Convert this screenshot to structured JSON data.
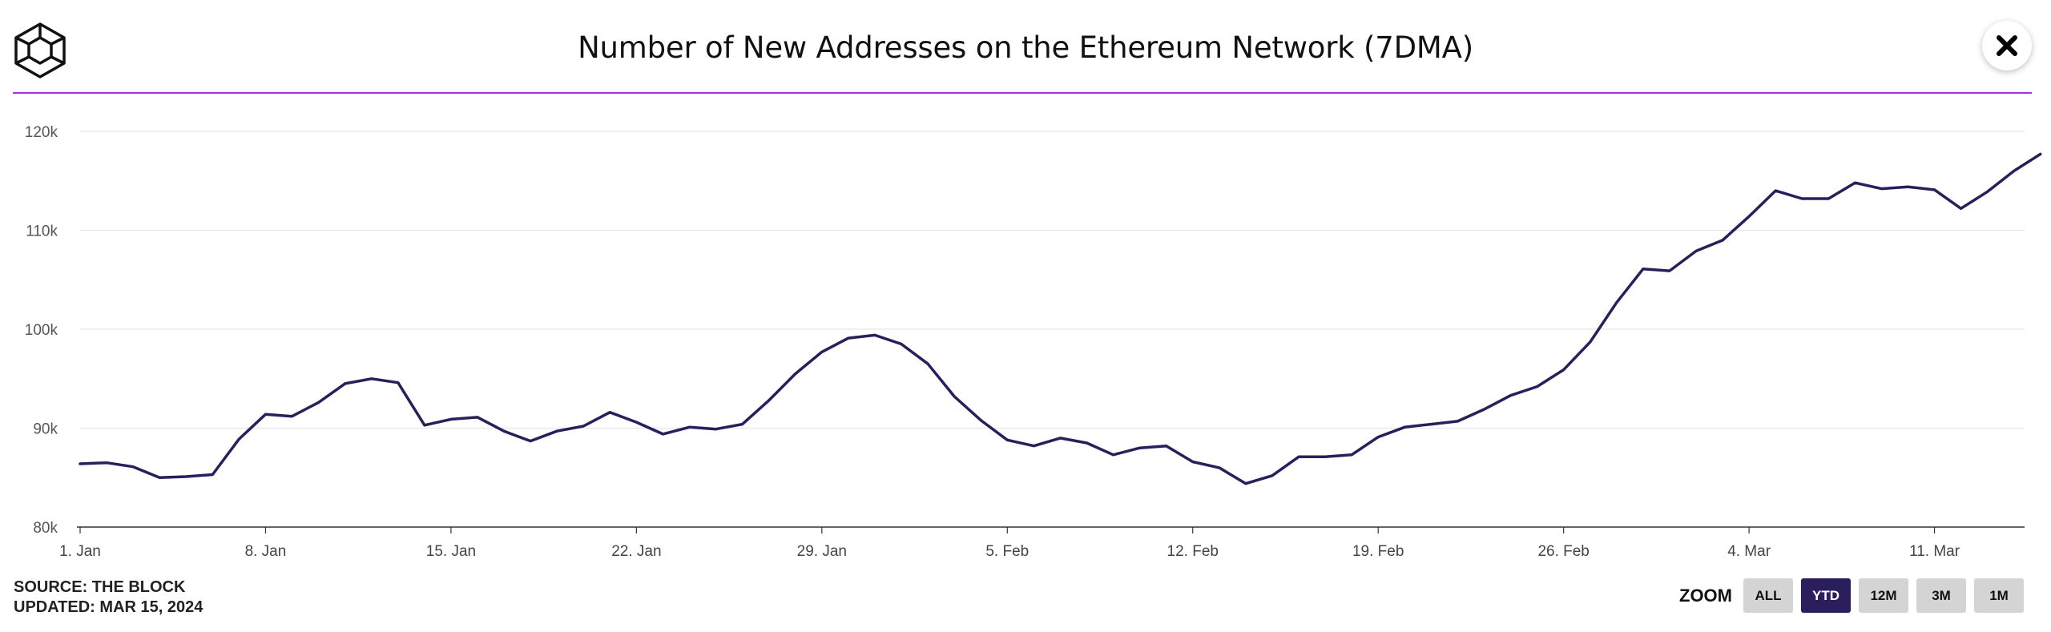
{
  "header": {
    "title": "Number of New Addresses on the Ethereum Network (7DMA)",
    "accent_color": "#a530e8"
  },
  "icons": {
    "logo": "the-block-cube-logo",
    "close": "close-x-icon"
  },
  "footer": {
    "source": "SOURCE: THE BLOCK",
    "updated": "UPDATED: MAR 15, 2024"
  },
  "zoom": {
    "label": "ZOOM",
    "options": [
      "ALL",
      "YTD",
      "12M",
      "3M",
      "1M"
    ],
    "selected": "YTD",
    "active_color": "#2a1f5c"
  },
  "chart_data": {
    "type": "line",
    "line_color": "#2a1f5c",
    "x_tick_labels": [
      "1. Jan",
      "8. Jan",
      "15. Jan",
      "22. Jan",
      "29. Jan",
      "5. Feb",
      "12. Feb",
      "19. Feb",
      "26. Feb",
      "4. Mar",
      "11. Mar"
    ],
    "y_tick_labels": [
      "80k",
      "90k",
      "100k",
      "110k",
      "120k"
    ],
    "ylim": [
      80000,
      120000
    ],
    "x_range_days": [
      0,
      73.4
    ],
    "grid": "horizontal",
    "series": [
      {
        "x_dates": [
          "2024-01-01",
          "2024-01-02",
          "2024-01-03",
          "2024-01-04",
          "2024-01-05",
          "2024-01-06",
          "2024-01-07",
          "2024-01-08",
          "2024-01-09",
          "2024-01-10",
          "2024-01-11",
          "2024-01-12",
          "2024-01-13",
          "2024-01-14",
          "2024-01-15",
          "2024-01-16",
          "2024-01-17",
          "2024-01-18",
          "2024-01-19",
          "2024-01-20",
          "2024-01-21",
          "2024-01-22",
          "2024-01-23",
          "2024-01-24",
          "2024-01-25",
          "2024-01-26",
          "2024-01-27",
          "2024-01-28",
          "2024-01-29",
          "2024-01-30",
          "2024-01-31",
          "2024-02-01",
          "2024-02-02",
          "2024-02-03",
          "2024-02-04",
          "2024-02-05",
          "2024-02-06",
          "2024-02-07",
          "2024-02-08",
          "2024-02-09",
          "2024-02-10",
          "2024-02-11",
          "2024-02-12",
          "2024-02-13",
          "2024-02-14",
          "2024-02-15",
          "2024-02-16",
          "2024-02-17",
          "2024-02-18",
          "2024-02-19",
          "2024-02-20",
          "2024-02-21",
          "2024-02-22",
          "2024-02-23",
          "2024-02-24",
          "2024-02-25",
          "2024-02-26",
          "2024-02-27",
          "2024-02-28",
          "2024-02-29",
          "2024-03-01",
          "2024-03-02",
          "2024-03-03",
          "2024-03-04",
          "2024-03-05",
          "2024-03-06",
          "2024-03-07",
          "2024-03-08",
          "2024-03-09",
          "2024-03-10",
          "2024-03-11",
          "2024-03-12",
          "2024-03-13",
          "2024-03-14",
          "2024-03-15"
        ],
        "values": [
          86400,
          86500,
          86100,
          85000,
          85100,
          85300,
          88900,
          91400,
          91200,
          92600,
          94500,
          95000,
          94600,
          90300,
          90900,
          91100,
          89700,
          88700,
          89700,
          90200,
          91600,
          90600,
          89400,
          90100,
          89900,
          90400,
          92800,
          95500,
          97700,
          99100,
          99400,
          98500,
          96500,
          93200,
          90800,
          88800,
          88200,
          89000,
          88500,
          87300,
          88000,
          88200,
          86600,
          86000,
          84400,
          85200,
          87100,
          87100,
          87300,
          89100,
          90100,
          90400,
          90700,
          91900,
          93300,
          94200,
          95900,
          98700,
          102700,
          106100,
          105900,
          107900,
          109000,
          111400,
          114000,
          113200,
          113200,
          114800,
          114200,
          114400,
          114100,
          112200,
          113900,
          116000,
          117700
        ]
      }
    ]
  }
}
